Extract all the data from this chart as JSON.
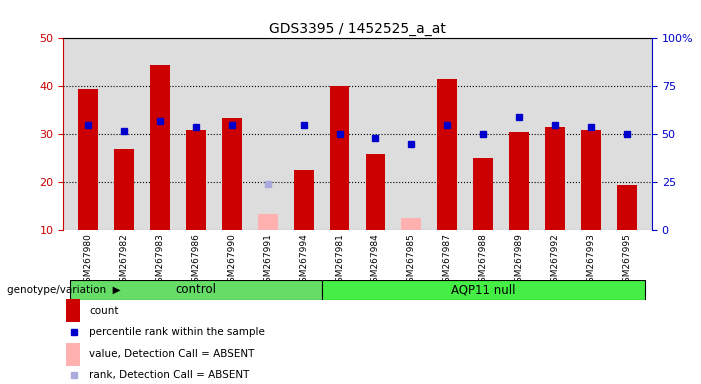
{
  "title": "GDS3395 / 1452525_a_at",
  "samples": [
    "GSM267980",
    "GSM267982",
    "GSM267983",
    "GSM267986",
    "GSM267990",
    "GSM267991",
    "GSM267994",
    "GSM267981",
    "GSM267984",
    "GSM267985",
    "GSM267987",
    "GSM267988",
    "GSM267989",
    "GSM267992",
    "GSM267993",
    "GSM267995"
  ],
  "groups": [
    "control",
    "control",
    "control",
    "control",
    "control",
    "control",
    "control",
    "AQP11 null",
    "AQP11 null",
    "AQP11 null",
    "AQP11 null",
    "AQP11 null",
    "AQP11 null",
    "AQP11 null",
    "AQP11 null",
    "AQP11 null"
  ],
  "red_bars": [
    39.5,
    27.0,
    44.5,
    31.0,
    33.5,
    null,
    22.5,
    40.0,
    26.0,
    null,
    41.5,
    25.0,
    30.5,
    31.5,
    31.0,
    19.5
  ],
  "blue_squares_pct": [
    55,
    52,
    57,
    54,
    55,
    null,
    55,
    50,
    48,
    45,
    55,
    50,
    59,
    55,
    54,
    50
  ],
  "pink_bars": [
    null,
    null,
    null,
    null,
    null,
    13.5,
    null,
    null,
    null,
    12.5,
    null,
    null,
    null,
    null,
    null,
    null
  ],
  "lightblue_squares_pct": [
    null,
    null,
    null,
    null,
    null,
    24,
    null,
    null,
    null,
    null,
    null,
    null,
    null,
    null,
    null,
    null
  ],
  "ylim_left": [
    10,
    50
  ],
  "ylim_right": [
    0,
    100
  ],
  "left_ticks": [
    10,
    20,
    30,
    40,
    50
  ],
  "right_ticks": [
    0,
    25,
    50,
    75,
    100
  ],
  "right_tick_labels": [
    "0",
    "25",
    "50",
    "75",
    "100%"
  ],
  "bar_width": 0.55,
  "red_color": "#CC0000",
  "blue_color": "#0000CC",
  "pink_color": "#FFB0B0",
  "lightblue_color": "#AAAADD",
  "bg_color": "#DDDDDD",
  "green_color": "#66DD66",
  "white_color": "#FFFFFF",
  "ctrl_count": 7,
  "aqp_count": 9
}
